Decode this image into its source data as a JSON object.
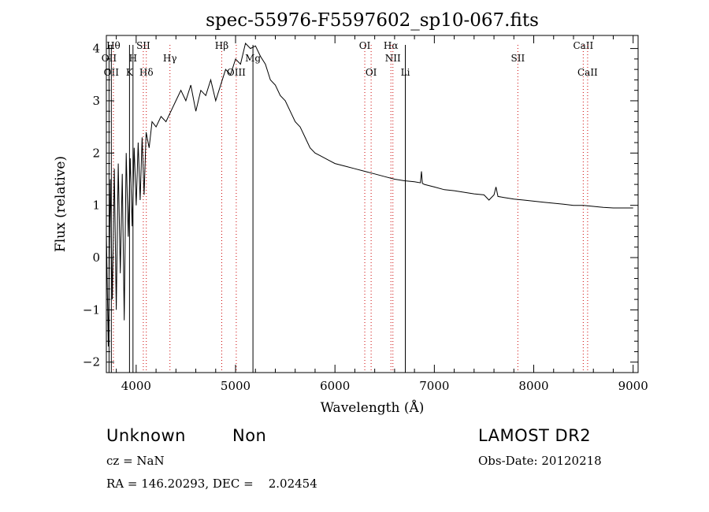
{
  "chart_data": {
    "type": "line",
    "title": "spec-55976-F5597602_sp10-067.fits",
    "xlabel": "Wavelength (Å)",
    "ylabel": "Flux (relative)",
    "xlim": [
      3700,
      9050
    ],
    "ylim": [
      -2.2,
      4.25
    ],
    "x_ticks": [
      4000,
      5000,
      6000,
      7000,
      8000,
      9000
    ],
    "y_ticks": [
      -2,
      -1,
      0,
      1,
      2,
      3,
      4
    ],
    "grid": false,
    "series": [
      {
        "color": "#000000",
        "x": [
          3700,
          3720,
          3740,
          3760,
          3780,
          3800,
          3820,
          3840,
          3860,
          3880,
          3900,
          3920,
          3940,
          3960,
          3980,
          4000,
          4020,
          4040,
          4060,
          4080,
          4100,
          4130,
          4160,
          4200,
          4250,
          4300,
          4350,
          4400,
          4450,
          4500,
          4550,
          4600,
          4650,
          4700,
          4750,
          4800,
          4850,
          4900,
          4950,
          5000,
          5050,
          5100,
          5150,
          5200,
          5250,
          5300,
          5350,
          5400,
          5450,
          5500,
          5550,
          5600,
          5650,
          5700,
          5750,
          5800,
          5850,
          5900,
          5950,
          6000,
          6100,
          6200,
          6300,
          6400,
          6500,
          6600,
          6700,
          6800,
          6860,
          6870,
          6880,
          6900,
          7000,
          7100,
          7200,
          7300,
          7400,
          7500,
          7550,
          7600,
          7620,
          7640,
          7700,
          7800,
          7900,
          8000,
          8100,
          8200,
          8300,
          8400,
          8500,
          8600,
          8700,
          8800,
          8900,
          9000
        ],
        "y": [
          0.5,
          -1.7,
          1.5,
          -0.8,
          1.7,
          -1.0,
          1.8,
          -0.3,
          1.6,
          -1.2,
          2.0,
          0.4,
          1.9,
          0.6,
          2.1,
          1.0,
          2.2,
          1.1,
          2.3,
          1.2,
          2.4,
          2.1,
          2.6,
          2.5,
          2.7,
          2.6,
          2.8,
          3.0,
          3.2,
          3.0,
          3.3,
          2.8,
          3.2,
          3.1,
          3.4,
          3.0,
          3.3,
          3.6,
          3.5,
          3.8,
          3.7,
          4.1,
          4.0,
          4.05,
          3.85,
          3.7,
          3.4,
          3.3,
          3.1,
          3.0,
          2.8,
          2.6,
          2.5,
          2.3,
          2.1,
          2.0,
          1.95,
          1.9,
          1.85,
          1.8,
          1.75,
          1.7,
          1.65,
          1.6,
          1.55,
          1.5,
          1.47,
          1.45,
          1.43,
          1.65,
          1.42,
          1.4,
          1.35,
          1.3,
          1.28,
          1.25,
          1.22,
          1.2,
          1.1,
          1.2,
          1.35,
          1.17,
          1.15,
          1.12,
          1.1,
          1.08,
          1.06,
          1.04,
          1.02,
          1.0,
          1.0,
          0.98,
          0.96,
          0.95,
          0.95,
          0.95
        ]
      }
    ],
    "lines": [
      {
        "x": 3727,
        "label": "OII",
        "row": 2,
        "color": "#000000",
        "style": "solid"
      },
      {
        "x": 3750,
        "label": "OII",
        "row": 4,
        "color": "#000000",
        "style": "solid"
      },
      {
        "x": 3771,
        "label": "Hθ",
        "row": 1,
        "color": "#cc0000",
        "style": "dotted"
      },
      {
        "x": 3933,
        "label": "K",
        "row": 4,
        "color": "#000000",
        "style": "solid"
      },
      {
        "x": 3968,
        "label": "H",
        "row": 2,
        "color": "#000000",
        "style": "solid"
      },
      {
        "x": 4072,
        "label": "SII",
        "row": 1,
        "color": "#cc0000",
        "style": "dotted"
      },
      {
        "x": 4102,
        "label": "Hδ",
        "row": 4,
        "color": "#cc0000",
        "style": "dotted"
      },
      {
        "x": 4340,
        "label": "Hγ",
        "row": 2,
        "color": "#cc0000",
        "style": "dotted"
      },
      {
        "x": 4861,
        "label": "Hβ",
        "row": 1,
        "color": "#cc0000",
        "style": "dotted"
      },
      {
        "x": 5007,
        "label": "OIII",
        "row": 4,
        "color": "#cc0000",
        "style": "dotted"
      },
      {
        "x": 5175,
        "label": "Mg",
        "row": 2,
        "color": "#000000",
        "style": "solid"
      },
      {
        "x": 6300,
        "label": "OI",
        "row": 1,
        "color": "#cc0000",
        "style": "dotted"
      },
      {
        "x": 6364,
        "label": "OI",
        "row": 4,
        "color": "#cc0000",
        "style": "dotted"
      },
      {
        "x": 6563,
        "label": "Hα",
        "row": 1,
        "color": "#cc0000",
        "style": "dotted"
      },
      {
        "x": 6583,
        "label": "NII",
        "row": 2,
        "color": "#cc0000",
        "style": "dotted"
      },
      {
        "x": 6708,
        "label": "Li",
        "row": 4,
        "color": "#000000",
        "style": "solid"
      },
      {
        "x": 7840,
        "label": "SII",
        "row": 2,
        "color": "#cc0000",
        "style": "dotted"
      },
      {
        "x": 8498,
        "label": "CaII",
        "row": 1,
        "color": "#cc0000",
        "style": "dotted"
      },
      {
        "x": 8542,
        "label": "CaII",
        "row": 4,
        "color": "#cc0000",
        "style": "dotted"
      }
    ]
  },
  "info": {
    "class": "Unknown",
    "subclass": "Non",
    "survey": "LAMOST DR2",
    "cz": "cz = NaN",
    "obs_date": "Obs-Date: 20120218",
    "coords": "RA = 146.20293, DEC =    2.02454"
  }
}
